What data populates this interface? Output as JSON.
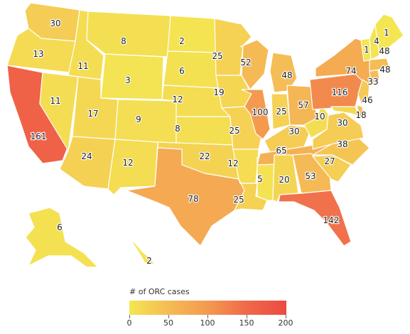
{
  "legend": {
    "title": "# of ORC cases",
    "min": 0,
    "max": 200,
    "ticks": [
      "0",
      "50",
      "100",
      "150",
      "200"
    ],
    "colors": [
      "#f4e652",
      "#f5bb55",
      "#f39a4f",
      "#f0694a",
      "#ec4a42"
    ]
  },
  "map_data": {
    "type": "choropleth",
    "regions": [
      {
        "id": "WA",
        "value": 30
      },
      {
        "id": "OR",
        "value": 13
      },
      {
        "id": "CA",
        "value": 161
      },
      {
        "id": "NV",
        "value": 11
      },
      {
        "id": "ID",
        "value": 11
      },
      {
        "id": "MT",
        "value": 8
      },
      {
        "id": "WY",
        "value": 3
      },
      {
        "id": "UT",
        "value": 17
      },
      {
        "id": "AZ",
        "value": 24
      },
      {
        "id": "CO",
        "value": 9
      },
      {
        "id": "NM",
        "value": 12
      },
      {
        "id": "ND",
        "value": 2
      },
      {
        "id": "SD",
        "value": 6
      },
      {
        "id": "NE",
        "value": 12
      },
      {
        "id": "KS",
        "value": 8
      },
      {
        "id": "OK",
        "value": 22
      },
      {
        "id": "TX",
        "value": 78
      },
      {
        "id": "MN",
        "value": 25
      },
      {
        "id": "IA",
        "value": 19
      },
      {
        "id": "MO",
        "value": 25
      },
      {
        "id": "AR",
        "value": 12
      },
      {
        "id": "LA",
        "value": 25
      },
      {
        "id": "WI",
        "value": 52
      },
      {
        "id": "IL",
        "value": 100
      },
      {
        "id": "MS",
        "value": 5
      },
      {
        "id": "MI",
        "value": 48
      },
      {
        "id": "IN",
        "value": 25
      },
      {
        "id": "KY",
        "value": 30
      },
      {
        "id": "TN",
        "value": 65
      },
      {
        "id": "AL",
        "value": 20
      },
      {
        "id": "OH",
        "value": 57
      },
      {
        "id": "WV",
        "value": 10
      },
      {
        "id": "GA",
        "value": 53
      },
      {
        "id": "FL",
        "value": 142
      },
      {
        "id": "SC",
        "value": 27
      },
      {
        "id": "NC",
        "value": 38
      },
      {
        "id": "VA",
        "value": 30
      },
      {
        "id": "PA",
        "value": 116
      },
      {
        "id": "NY",
        "value": 74
      },
      {
        "id": "MD",
        "value": 18
      },
      {
        "id": "DE",
        "value": 46
      },
      {
        "id": "NJ",
        "value": 33
      },
      {
        "id": "CT",
        "value": 48
      },
      {
        "id": "MA",
        "value": 48
      },
      {
        "id": "VT",
        "value": 1
      },
      {
        "id": "NH",
        "value": 4
      },
      {
        "id": "ME",
        "value": 1
      },
      {
        "id": "AK",
        "value": 6
      },
      {
        "id": "HI",
        "value": 2
      }
    ]
  }
}
